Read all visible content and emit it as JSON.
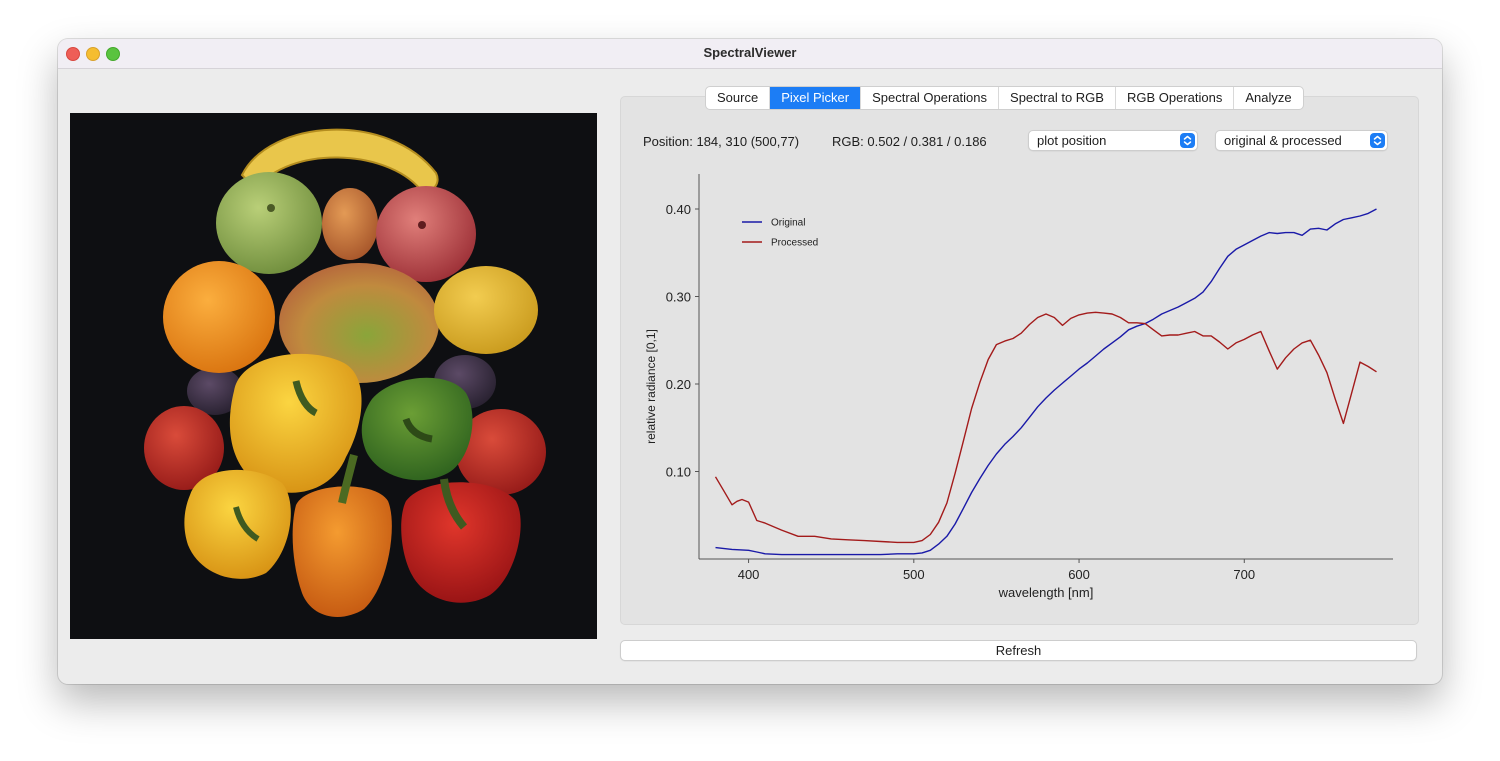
{
  "window": {
    "title": "SpectralViewer"
  },
  "tabs": [
    {
      "label": "Source",
      "active": false
    },
    {
      "label": "Pixel Picker",
      "active": true
    },
    {
      "label": "Spectral Operations",
      "active": false
    },
    {
      "label": "Spectral to RGB",
      "active": false
    },
    {
      "label": "RGB Operations",
      "active": false
    },
    {
      "label": "Analyze",
      "active": false
    }
  ],
  "readout": {
    "position": "Position: 184, 310 (500,77)",
    "rgb": "RGB: 0.502 / 0.381 / 0.186"
  },
  "selects": {
    "mode": "plot position",
    "curves": "original & processed"
  },
  "buttons": {
    "refresh": "Refresh"
  },
  "colors": {
    "accent": "#1c7df5",
    "original_line": "#1a1aa8",
    "processed_line": "#a31b1b"
  },
  "chart_data": {
    "type": "line",
    "xlabel": "wavelength [nm]",
    "ylabel": "relative radiance [0,1]",
    "xlim": [
      370,
      790
    ],
    "ylim": [
      0,
      0.44
    ],
    "xticks": [
      400,
      500,
      600,
      700
    ],
    "xtick_labels": [
      "400",
      "500",
      "600",
      "700"
    ],
    "yticks": [
      0.1,
      0.2,
      0.3,
      0.4
    ],
    "ytick_labels": [
      "0.10",
      "0.20",
      "0.30",
      "0.40"
    ],
    "legend": "top-left",
    "series": [
      {
        "name": "Original",
        "color": "#1a1aa8",
        "x": [
          380,
          390,
          400,
          405,
          410,
          420,
          430,
          440,
          450,
          460,
          470,
          480,
          490,
          500,
          505,
          510,
          515,
          520,
          525,
          530,
          535,
          540,
          545,
          550,
          555,
          560,
          565,
          570,
          575,
          580,
          585,
          590,
          595,
          600,
          605,
          610,
          615,
          620,
          625,
          630,
          635,
          640,
          645,
          650,
          655,
          660,
          665,
          670,
          675,
          680,
          685,
          690,
          695,
          700,
          705,
          710,
          715,
          720,
          725,
          730,
          735,
          740,
          745,
          750,
          755,
          760,
          765,
          770,
          775,
          780
        ],
        "y": [
          0.013,
          0.011,
          0.01,
          0.008,
          0.006,
          0.005,
          0.005,
          0.005,
          0.005,
          0.005,
          0.005,
          0.005,
          0.006,
          0.006,
          0.007,
          0.01,
          0.017,
          0.026,
          0.04,
          0.058,
          0.076,
          0.092,
          0.107,
          0.12,
          0.131,
          0.14,
          0.15,
          0.162,
          0.174,
          0.184,
          0.193,
          0.201,
          0.209,
          0.217,
          0.224,
          0.232,
          0.24,
          0.247,
          0.254,
          0.262,
          0.266,
          0.269,
          0.274,
          0.28,
          0.284,
          0.288,
          0.293,
          0.298,
          0.305,
          0.317,
          0.332,
          0.346,
          0.354,
          0.359,
          0.364,
          0.369,
          0.373,
          0.372,
          0.373,
          0.373,
          0.37,
          0.377,
          0.378,
          0.376,
          0.383,
          0.388,
          0.39,
          0.392,
          0.395,
          0.4
        ]
      },
      {
        "name": "Processed",
        "color": "#a31b1b",
        "x": [
          380,
          385,
          390,
          393,
          396,
          400,
          405,
          410,
          420,
          430,
          440,
          450,
          460,
          470,
          480,
          490,
          500,
          505,
          510,
          515,
          520,
          525,
          530,
          535,
          540,
          545,
          550,
          555,
          560,
          565,
          570,
          575,
          580,
          585,
          590,
          595,
          600,
          605,
          610,
          615,
          620,
          625,
          630,
          635,
          640,
          645,
          650,
          655,
          660,
          665,
          670,
          675,
          680,
          685,
          690,
          695,
          700,
          705,
          710,
          715,
          720,
          725,
          730,
          735,
          740,
          745,
          750,
          755,
          760,
          765,
          770,
          775,
          780
        ],
        "y": [
          0.094,
          0.078,
          0.062,
          0.066,
          0.068,
          0.065,
          0.044,
          0.041,
          0.033,
          0.026,
          0.026,
          0.023,
          0.022,
          0.021,
          0.02,
          0.019,
          0.019,
          0.021,
          0.028,
          0.042,
          0.064,
          0.098,
          0.135,
          0.172,
          0.202,
          0.228,
          0.245,
          0.249,
          0.252,
          0.258,
          0.268,
          0.276,
          0.28,
          0.276,
          0.267,
          0.275,
          0.279,
          0.281,
          0.282,
          0.281,
          0.28,
          0.276,
          0.27,
          0.27,
          0.269,
          0.262,
          0.255,
          0.256,
          0.256,
          0.258,
          0.26,
          0.255,
          0.255,
          0.248,
          0.24,
          0.247,
          0.251,
          0.256,
          0.26,
          0.238,
          0.217,
          0.23,
          0.24,
          0.247,
          0.25,
          0.233,
          0.213,
          0.183,
          0.155,
          0.19,
          0.225,
          0.22,
          0.214
        ]
      }
    ]
  }
}
